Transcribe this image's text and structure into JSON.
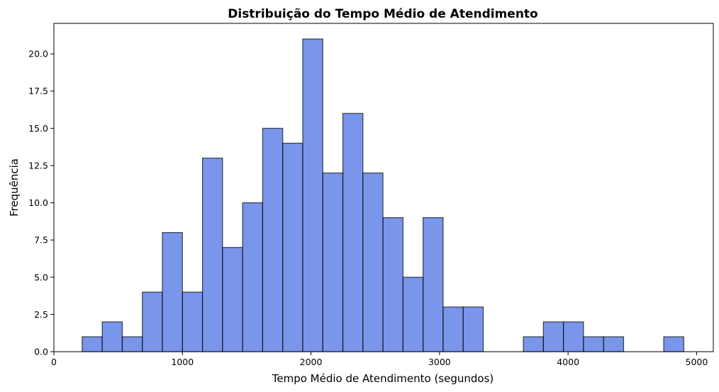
{
  "chart_data": {
    "type": "bar",
    "title": "Distribuição do Tempo Médio de Atendimento",
    "xlabel": "Tempo Médio de Atendimento (segundos)",
    "ylabel": "Frequência",
    "xlim": [
      0,
      5130
    ],
    "ylim": [
      0,
      22.05
    ],
    "grid": false,
    "bar_color": "#4169e1",
    "edge_color": "#000000",
    "bins": [
      {
        "x0": 220,
        "x1": 376,
        "value": 1
      },
      {
        "x0": 376,
        "x1": 532,
        "value": 2
      },
      {
        "x0": 532,
        "x1": 688,
        "value": 1
      },
      {
        "x0": 688,
        "x1": 844,
        "value": 4
      },
      {
        "x0": 844,
        "x1": 1000,
        "value": 8
      },
      {
        "x0": 1000,
        "x1": 1156,
        "value": 4
      },
      {
        "x0": 1156,
        "x1": 1312,
        "value": 13
      },
      {
        "x0": 1312,
        "x1": 1468,
        "value": 7
      },
      {
        "x0": 1468,
        "x1": 1624,
        "value": 10
      },
      {
        "x0": 1624,
        "x1": 1780,
        "value": 15
      },
      {
        "x0": 1780,
        "x1": 1936,
        "value": 14
      },
      {
        "x0": 1936,
        "x1": 2092,
        "value": 21
      },
      {
        "x0": 2092,
        "x1": 2248,
        "value": 12
      },
      {
        "x0": 2248,
        "x1": 2404,
        "value": 16
      },
      {
        "x0": 2404,
        "x1": 2560,
        "value": 12
      },
      {
        "x0": 2560,
        "x1": 2716,
        "value": 9
      },
      {
        "x0": 2716,
        "x1": 2872,
        "value": 5
      },
      {
        "x0": 2872,
        "x1": 3028,
        "value": 9
      },
      {
        "x0": 3028,
        "x1": 3184,
        "value": 3
      },
      {
        "x0": 3184,
        "x1": 3340,
        "value": 3
      },
      {
        "x0": 3340,
        "x1": 3496,
        "value": 0
      },
      {
        "x0": 3496,
        "x1": 3652,
        "value": 0
      },
      {
        "x0": 3652,
        "x1": 3808,
        "value": 1
      },
      {
        "x0": 3808,
        "x1": 3964,
        "value": 2
      },
      {
        "x0": 3964,
        "x1": 4120,
        "value": 2
      },
      {
        "x0": 4120,
        "x1": 4276,
        "value": 1
      },
      {
        "x0": 4276,
        "x1": 4432,
        "value": 1
      },
      {
        "x0": 4432,
        "x1": 4588,
        "value": 0
      },
      {
        "x0": 4588,
        "x1": 4744,
        "value": 0
      },
      {
        "x0": 4744,
        "x1": 4900,
        "value": 1
      }
    ],
    "x_ticks": [
      {
        "value": 0,
        "label": "0"
      },
      {
        "value": 1000,
        "label": "1000"
      },
      {
        "value": 2000,
        "label": "2000"
      },
      {
        "value": 3000,
        "label": "3000"
      },
      {
        "value": 4000,
        "label": "4000"
      },
      {
        "value": 5000,
        "label": "5000"
      }
    ],
    "y_ticks": [
      {
        "value": 0,
        "label": "0.0"
      },
      {
        "value": 2.5,
        "label": "2.5"
      },
      {
        "value": 5,
        "label": "5.0"
      },
      {
        "value": 7.5,
        "label": "7.5"
      },
      {
        "value": 10,
        "label": "10.0"
      },
      {
        "value": 12.5,
        "label": "12.5"
      },
      {
        "value": 15,
        "label": "15.0"
      },
      {
        "value": 17.5,
        "label": "17.5"
      },
      {
        "value": 20,
        "label": "20.0"
      }
    ]
  }
}
